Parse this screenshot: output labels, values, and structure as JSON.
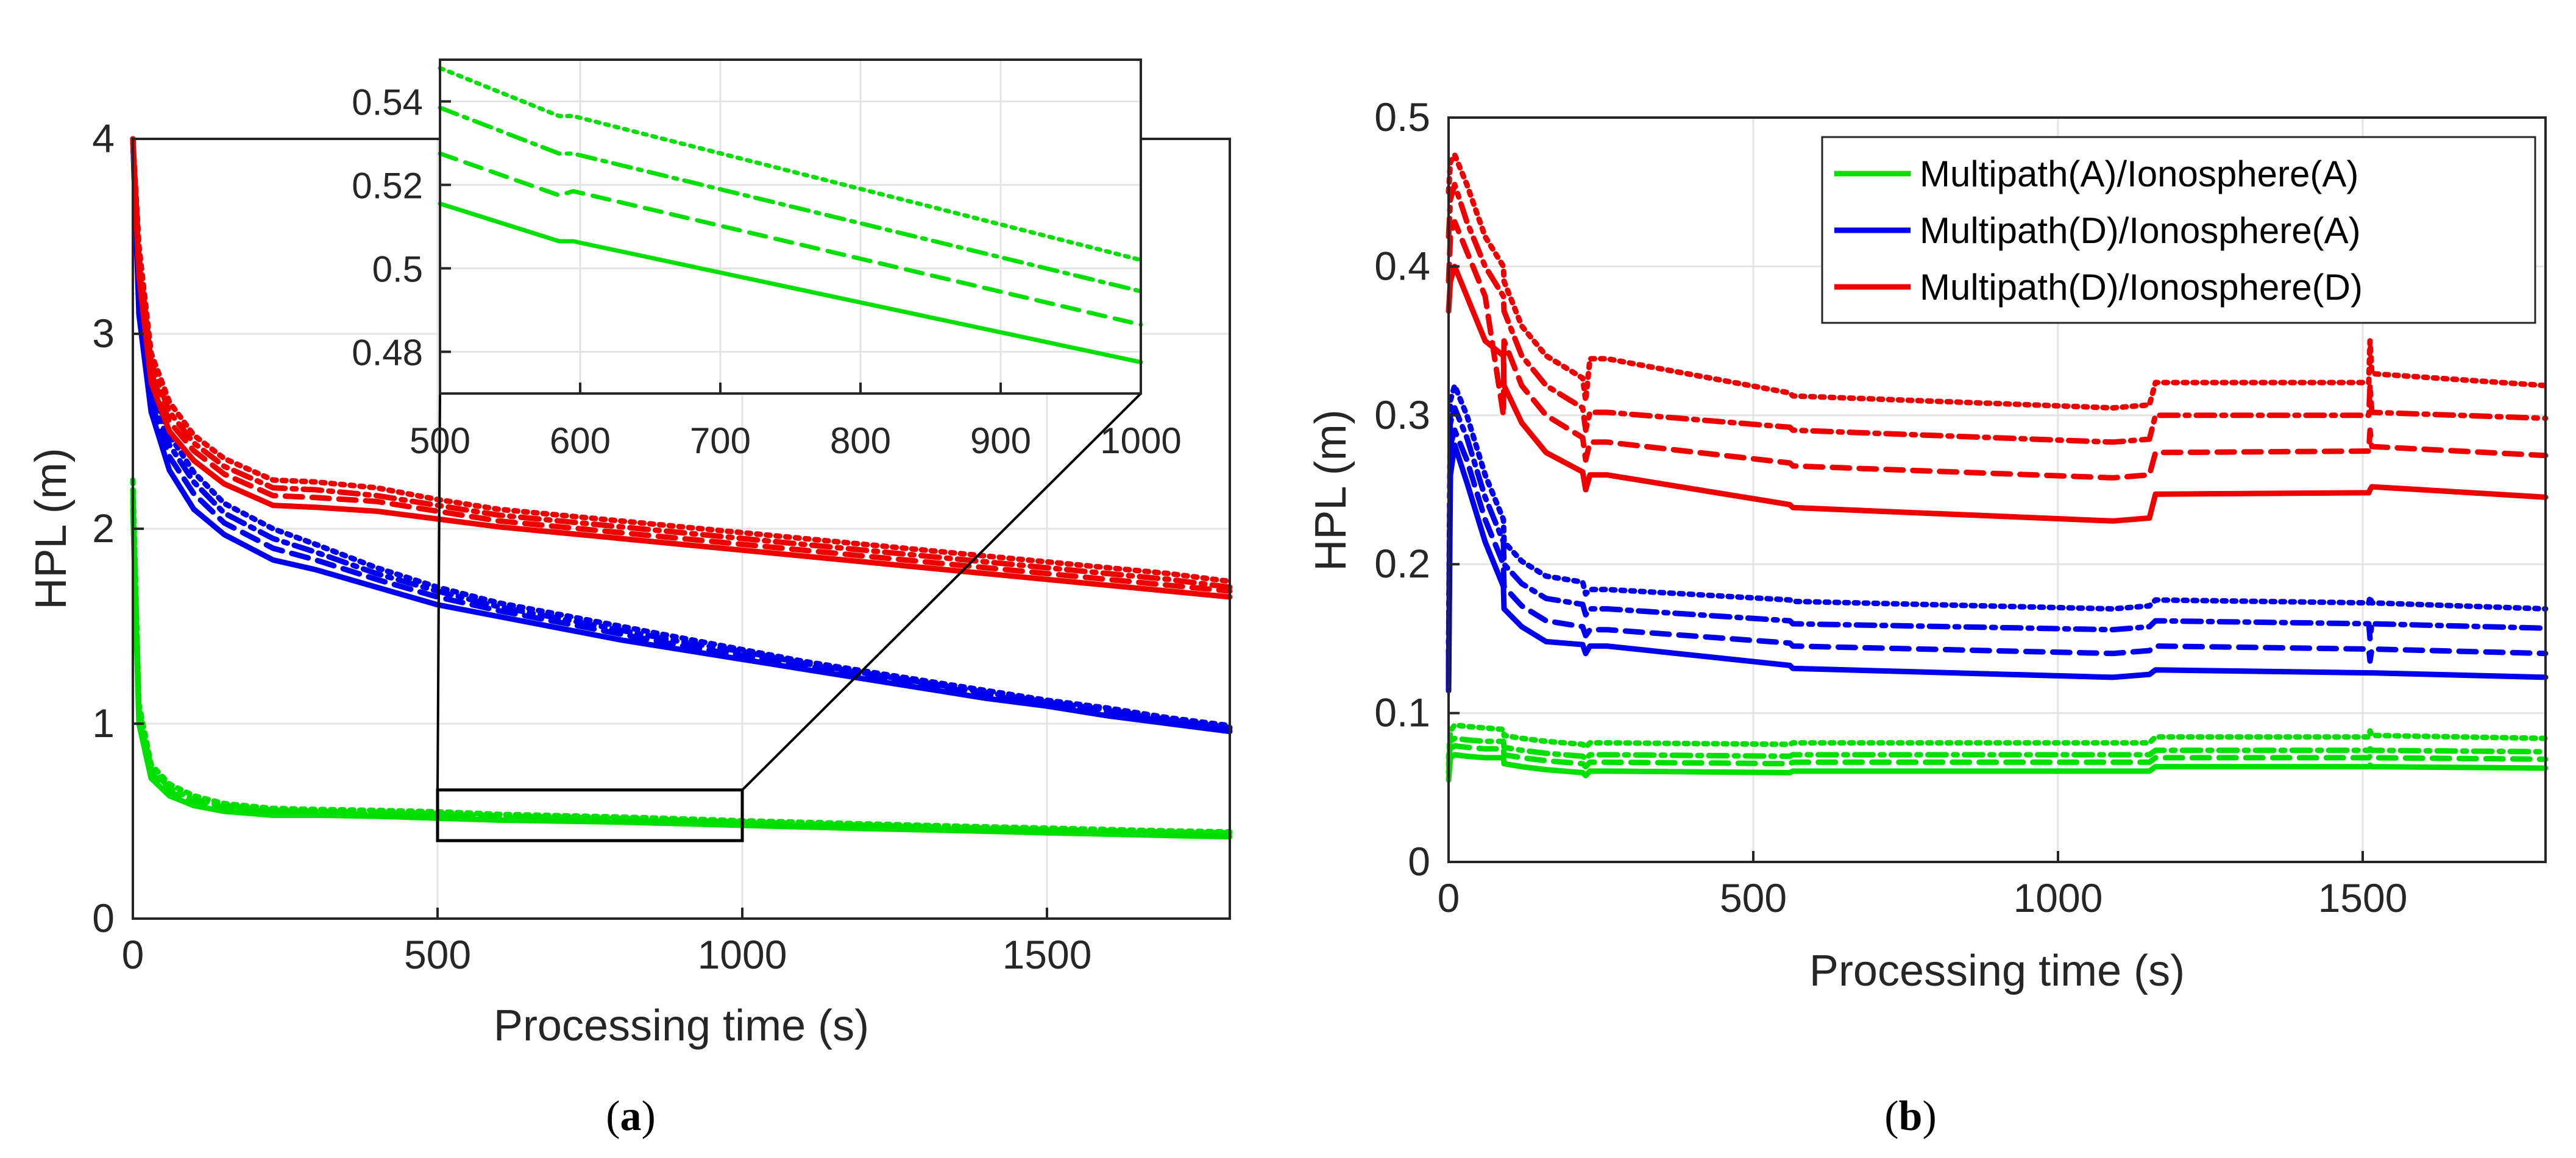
{
  "chart_data": [
    {
      "panel": "(a)",
      "type": "line",
      "xlabel": "Processing time (s)",
      "ylabel": "HPL (m)",
      "xlim": [
        0,
        1800
      ],
      "ylim": [
        0,
        4
      ],
      "xticks": [
        0,
        500,
        1000,
        1500
      ],
      "yticks": [
        0,
        1,
        2,
        3,
        4
      ],
      "x": [
        0,
        10,
        30,
        60,
        100,
        150,
        230,
        300,
        400,
        500,
        600,
        700,
        800,
        900,
        1000,
        1100,
        1200,
        1300,
        1400,
        1500,
        1600,
        1700,
        1800
      ],
      "series": [
        {
          "name": "Multipath(A)/Ionosphere(A)",
          "color": "#00e000",
          "style": "solid",
          "values": [
            2.1,
            1.0,
            0.72,
            0.63,
            0.58,
            0.55,
            0.53,
            0.53,
            0.525,
            0.515,
            0.505,
            0.5,
            0.495,
            0.487,
            0.478,
            0.47,
            0.462,
            0.455,
            0.448,
            0.44,
            0.433,
            0.426,
            0.42
          ]
        },
        {
          "name": "Multipath(A)/Ionosphere(A)",
          "color": "#00e000",
          "style": "dashed",
          "values": [
            2.15,
            1.04,
            0.75,
            0.65,
            0.6,
            0.57,
            0.545,
            0.54,
            0.535,
            0.528,
            0.518,
            0.512,
            0.505,
            0.495,
            0.486,
            0.478,
            0.47,
            0.463,
            0.456,
            0.448,
            0.441,
            0.434,
            0.43
          ]
        },
        {
          "name": "Multipath(A)/Ionosphere(A)",
          "color": "#00e000",
          "style": "dashdot",
          "values": [
            2.2,
            1.07,
            0.77,
            0.67,
            0.61,
            0.58,
            0.555,
            0.55,
            0.545,
            0.538,
            0.527,
            0.52,
            0.513,
            0.504,
            0.495,
            0.487,
            0.479,
            0.471,
            0.464,
            0.457,
            0.45,
            0.443,
            0.44
          ]
        },
        {
          "name": "Multipath(A)/Ionosphere(A)",
          "color": "#00e000",
          "style": "dotted",
          "values": [
            2.25,
            1.1,
            0.79,
            0.69,
            0.63,
            0.59,
            0.565,
            0.56,
            0.555,
            0.548,
            0.535,
            0.528,
            0.521,
            0.512,
            0.502,
            0.494,
            0.486,
            0.478,
            0.471,
            0.464,
            0.457,
            0.45,
            0.445
          ]
        },
        {
          "name": "Multipath(D)/Ionosphere(A)",
          "color": "#0000ee",
          "style": "solid",
          "values": [
            4.0,
            3.1,
            2.6,
            2.3,
            2.1,
            1.97,
            1.84,
            1.79,
            1.7,
            1.61,
            1.55,
            1.49,
            1.43,
            1.38,
            1.33,
            1.28,
            1.23,
            1.18,
            1.13,
            1.09,
            1.04,
            1.0,
            0.96
          ]
        },
        {
          "name": "Multipath(D)/Ionosphere(A)",
          "color": "#0000ee",
          "style": "dashed",
          "values": [
            4.0,
            3.15,
            2.65,
            2.37,
            2.18,
            2.03,
            1.9,
            1.84,
            1.74,
            1.65,
            1.58,
            1.52,
            1.46,
            1.4,
            1.35,
            1.3,
            1.25,
            1.2,
            1.15,
            1.1,
            1.06,
            1.01,
            0.97
          ]
        },
        {
          "name": "Multipath(D)/Ionosphere(A)",
          "color": "#0000ee",
          "style": "dashdot",
          "values": [
            4.0,
            3.2,
            2.7,
            2.43,
            2.24,
            2.08,
            1.95,
            1.88,
            1.77,
            1.68,
            1.6,
            1.54,
            1.48,
            1.42,
            1.37,
            1.31,
            1.26,
            1.21,
            1.16,
            1.11,
            1.07,
            1.02,
            0.98
          ]
        },
        {
          "name": "Multipath(D)/Ionosphere(A)",
          "color": "#0000ee",
          "style": "dotted",
          "values": [
            4.0,
            3.25,
            2.75,
            2.48,
            2.29,
            2.13,
            2.0,
            1.92,
            1.8,
            1.7,
            1.62,
            1.56,
            1.5,
            1.44,
            1.38,
            1.32,
            1.27,
            1.22,
            1.17,
            1.12,
            1.08,
            1.03,
            0.99
          ]
        },
        {
          "name": "Multipath(D)/Ionosphere(D)",
          "color": "#ee0000",
          "style": "solid",
          "values": [
            4.0,
            3.3,
            2.75,
            2.5,
            2.35,
            2.23,
            2.12,
            2.11,
            2.09,
            2.05,
            2.01,
            1.98,
            1.95,
            1.92,
            1.89,
            1.86,
            1.83,
            1.8,
            1.77,
            1.74,
            1.71,
            1.68,
            1.65
          ]
        },
        {
          "name": "Multipath(D)/Ionosphere(D)",
          "color": "#ee0000",
          "style": "dashed",
          "values": [
            4.0,
            3.35,
            2.8,
            2.55,
            2.4,
            2.28,
            2.17,
            2.16,
            2.14,
            2.09,
            2.04,
            2.01,
            1.98,
            1.95,
            1.92,
            1.89,
            1.86,
            1.83,
            1.8,
            1.77,
            1.74,
            1.71,
            1.68
          ]
        },
        {
          "name": "Multipath(D)/Ionosphere(D)",
          "color": "#ee0000",
          "style": "dashdot",
          "values": [
            4.0,
            3.4,
            2.85,
            2.6,
            2.44,
            2.32,
            2.21,
            2.2,
            2.17,
            2.12,
            2.07,
            2.04,
            2.01,
            1.98,
            1.95,
            1.92,
            1.89,
            1.86,
            1.83,
            1.8,
            1.77,
            1.74,
            1.7
          ]
        },
        {
          "name": "Multipath(D)/Ionosphere(D)",
          "color": "#ee0000",
          "style": "dotted",
          "values": [
            4.0,
            3.45,
            2.9,
            2.65,
            2.48,
            2.36,
            2.25,
            2.24,
            2.21,
            2.15,
            2.1,
            2.07,
            2.04,
            2.01,
            1.98,
            1.95,
            1.92,
            1.89,
            1.86,
            1.83,
            1.8,
            1.77,
            1.73
          ]
        }
      ],
      "zoom_box": {
        "x": [
          500,
          1000
        ],
        "y": [
          0.4,
          0.66
        ]
      },
      "inset": {
        "xlim": [
          500,
          1000
        ],
        "ylim": [
          0.47,
          0.55
        ],
        "xticks": [
          500,
          600,
          700,
          800,
          900,
          1000
        ],
        "yticks": [
          0.48,
          0.5,
          0.52,
          0.54
        ],
        "ytick_labels": [
          "0.48",
          "0.5",
          "0.52",
          "0.54"
        ],
        "x": [
          500,
          585,
          595,
          1000
        ],
        "series": [
          {
            "color": "#00e000",
            "style": "solid",
            "values": [
              0.5155,
              0.5065,
              0.5065,
              0.4775
            ]
          },
          {
            "color": "#00e000",
            "style": "dashed",
            "values": [
              0.5275,
              0.5175,
              0.5185,
              0.4865
            ]
          },
          {
            "color": "#00e000",
            "style": "dashdot",
            "values": [
              0.5385,
              0.5275,
              0.5275,
              0.4945
            ]
          },
          {
            "color": "#00e000",
            "style": "dotted",
            "values": [
              0.548,
              0.5365,
              0.5365,
              0.502
            ]
          }
        ]
      }
    },
    {
      "panel": "(b)",
      "type": "line",
      "xlabel": "Processing time (s)",
      "ylabel": "HPL (m)",
      "xlim": [
        0,
        1800
      ],
      "ylim": [
        0,
        0.5
      ],
      "xticks": [
        0,
        500,
        1000,
        1500
      ],
      "yticks": [
        0,
        0.1,
        0.2,
        0.3,
        0.4,
        0.5
      ],
      "ytick_labels": [
        "0",
        "0.1",
        "0.2",
        "0.3",
        "0.4",
        "0.5"
      ],
      "legend_position": "top-right",
      "legend": [
        {
          "label": "Multipath(A)/Ionosphere(A)",
          "color": "#00e000"
        },
        {
          "label": "Multipath(D)/Ionosphere(A)",
          "color": "#0000ee"
        },
        {
          "label": "Multipath(D)/Ionosphere(D)",
          "color": "#ee0000"
        }
      ],
      "x": [
        0,
        3,
        10,
        30,
        60,
        90,
        91,
        120,
        160,
        220,
        225,
        232,
        260,
        560,
        565,
        1090,
        1150,
        1160,
        1510,
        1512,
        1515,
        1800
      ],
      "series": [
        {
          "name": "Multipath(A)/Ionosphere(A)",
          "color": "#00e000",
          "style": "solid",
          "values": [
            0.055,
            0.07,
            0.072,
            0.071,
            0.07,
            0.07,
            0.066,
            0.064,
            0.062,
            0.06,
            0.058,
            0.061,
            0.061,
            0.06,
            0.061,
            0.061,
            0.061,
            0.064,
            0.064,
            0.065,
            0.064,
            0.063
          ]
        },
        {
          "name": "Multipath(A)/Ionosphere(A)",
          "color": "#00e000",
          "style": "dashed",
          "values": [
            0.06,
            0.076,
            0.078,
            0.077,
            0.076,
            0.076,
            0.072,
            0.07,
            0.068,
            0.066,
            0.064,
            0.067,
            0.067,
            0.066,
            0.067,
            0.067,
            0.067,
            0.07,
            0.07,
            0.071,
            0.07,
            0.069
          ]
        },
        {
          "name": "Multipath(A)/Ionosphere(A)",
          "color": "#00e000",
          "style": "dashdot",
          "values": [
            0.065,
            0.081,
            0.083,
            0.082,
            0.081,
            0.081,
            0.077,
            0.075,
            0.073,
            0.071,
            0.069,
            0.072,
            0.072,
            0.071,
            0.072,
            0.072,
            0.072,
            0.075,
            0.075,
            0.076,
            0.075,
            0.074
          ]
        },
        {
          "name": "Multipath(A)/Ionosphere(A)",
          "color": "#00e000",
          "style": "dotted",
          "values": [
            0.07,
            0.088,
            0.092,
            0.091,
            0.09,
            0.089,
            0.085,
            0.083,
            0.081,
            0.079,
            0.077,
            0.08,
            0.08,
            0.079,
            0.08,
            0.08,
            0.08,
            0.084,
            0.084,
            0.088,
            0.085,
            0.083
          ]
        },
        {
          "name": "Multipath(D)/Ionosphere(A)",
          "color": "#0000ee",
          "style": "solid",
          "values": [
            0.115,
            0.26,
            0.28,
            0.255,
            0.215,
            0.185,
            0.17,
            0.158,
            0.148,
            0.146,
            0.14,
            0.145,
            0.145,
            0.132,
            0.13,
            0.124,
            0.126,
            0.129,
            0.127,
            0.127,
            0.127,
            0.124
          ]
        },
        {
          "name": "Multipath(D)/Ionosphere(A)",
          "color": "#0000ee",
          "style": "dashed",
          "values": [
            0.12,
            0.28,
            0.29,
            0.27,
            0.23,
            0.2,
            0.185,
            0.172,
            0.162,
            0.158,
            0.152,
            0.156,
            0.156,
            0.147,
            0.145,
            0.14,
            0.142,
            0.145,
            0.143,
            0.135,
            0.143,
            0.14
          ]
        },
        {
          "name": "Multipath(D)/Ionosphere(A)",
          "color": "#0000ee",
          "style": "dashdot",
          "values": [
            0.13,
            0.295,
            0.305,
            0.285,
            0.245,
            0.215,
            0.2,
            0.187,
            0.177,
            0.173,
            0.166,
            0.17,
            0.17,
            0.162,
            0.16,
            0.156,
            0.158,
            0.162,
            0.16,
            0.15,
            0.16,
            0.157
          ]
        },
        {
          "name": "Multipath(D)/Ionosphere(A)",
          "color": "#0000ee",
          "style": "dotted",
          "values": [
            0.14,
            0.31,
            0.32,
            0.3,
            0.26,
            0.23,
            0.215,
            0.202,
            0.192,
            0.188,
            0.18,
            0.183,
            0.183,
            0.176,
            0.175,
            0.17,
            0.172,
            0.176,
            0.174,
            0.178,
            0.174,
            0.17
          ]
        },
        {
          "name": "Multipath(D)/Ionosphere(D)",
          "color": "#ee0000",
          "style": "solid",
          "values": [
            0.37,
            0.39,
            0.4,
            0.38,
            0.35,
            0.34,
            0.32,
            0.295,
            0.275,
            0.262,
            0.25,
            0.26,
            0.26,
            0.24,
            0.238,
            0.229,
            0.231,
            0.247,
            0.248,
            0.25,
            0.252,
            0.245
          ]
        },
        {
          "name": "Multipath(D)/Ionosphere(D)",
          "color": "#ee0000",
          "style": "dashed",
          "values": [
            0.39,
            0.42,
            0.43,
            0.41,
            0.38,
            0.3,
            0.35,
            0.32,
            0.3,
            0.285,
            0.27,
            0.282,
            0.282,
            0.268,
            0.266,
            0.258,
            0.26,
            0.275,
            0.276,
            0.29,
            0.279,
            0.273
          ]
        },
        {
          "name": "Multipath(D)/Ionosphere(D)",
          "color": "#ee0000",
          "style": "dashdot",
          "values": [
            0.42,
            0.445,
            0.455,
            0.43,
            0.4,
            0.38,
            0.37,
            0.34,
            0.32,
            0.305,
            0.29,
            0.302,
            0.302,
            0.292,
            0.29,
            0.282,
            0.284,
            0.3,
            0.3,
            0.32,
            0.302,
            0.298
          ]
        },
        {
          "name": "Multipath(D)/Ionosphere(D)",
          "color": "#ee0000",
          "style": "dotted",
          "values": [
            0.45,
            0.47,
            0.475,
            0.455,
            0.42,
            0.4,
            0.39,
            0.36,
            0.34,
            0.325,
            0.31,
            0.338,
            0.338,
            0.315,
            0.313,
            0.305,
            0.307,
            0.322,
            0.322,
            0.35,
            0.328,
            0.32
          ]
        }
      ]
    }
  ]
}
